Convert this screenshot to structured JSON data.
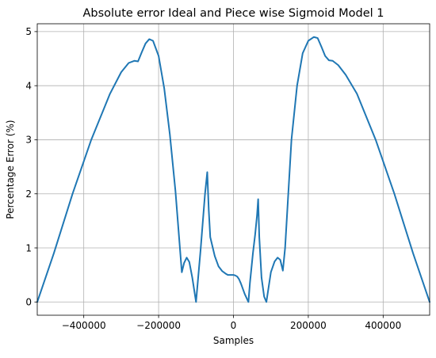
{
  "chart_data": {
    "type": "line",
    "title": "Absolute error Ideal and Piece wise Sigmoid Model 1",
    "xlabel": "Samples",
    "ylabel": "Percentage Error (%)",
    "xlim": [
      -524288,
      524288
    ],
    "ylim": [
      -0.245,
      5.145
    ],
    "x_ticks": [
      -400000,
      -200000,
      0,
      200000,
      400000
    ],
    "x_tick_labels": [
      "−400000",
      "−200000",
      "0",
      "200000",
      "400000"
    ],
    "y_ticks": [
      0,
      1,
      2,
      3,
      4,
      5
    ],
    "y_tick_labels": [
      "0",
      "1",
      "2",
      "3",
      "4",
      "5"
    ],
    "grid": true,
    "colors": {
      "line": "#1f77b4",
      "grid": "#b0b0b0",
      "axes": "#000000"
    },
    "series": [
      {
        "x": [
          -524288,
          -480000,
          -430000,
          -380000,
          -330000,
          -300000,
          -280000,
          -265000,
          -255000,
          -245000,
          -235000,
          -225000,
          -215000,
          -200000,
          -185000,
          -170000,
          -155000,
          -138000,
          -132000,
          -125000,
          -118000,
          -110000,
          -100000,
          -88000,
          -76000,
          -70000,
          -66000,
          -62000,
          -50000,
          -40000,
          -30000,
          -20000,
          -15000,
          -10000,
          -5000,
          0,
          5000,
          10000,
          15000,
          20000,
          30000,
          40000,
          44000,
          52000,
          58000,
          63000,
          66000,
          69000,
          75000,
          82000,
          88000,
          100000,
          110000,
          118000,
          125000,
          132000,
          138000,
          155000,
          170000,
          185000,
          200000,
          215000,
          225000,
          235000,
          245000,
          255000,
          265000,
          280000,
          300000,
          330000,
          380000,
          430000,
          480000,
          524288
        ],
        "y": [
          0.0,
          0.9,
          2.0,
          3.0,
          3.85,
          4.25,
          4.42,
          4.46,
          4.45,
          4.62,
          4.78,
          4.86,
          4.83,
          4.55,
          3.95,
          3.1,
          2.05,
          0.55,
          0.72,
          0.82,
          0.74,
          0.45,
          0.0,
          0.95,
          2.0,
          2.4,
          1.7,
          1.2,
          0.85,
          0.66,
          0.57,
          0.52,
          0.5,
          0.5,
          0.5,
          0.5,
          0.49,
          0.47,
          0.42,
          0.34,
          0.15,
          0.0,
          0.35,
          0.9,
          1.25,
          1.6,
          1.9,
          1.2,
          0.45,
          0.1,
          0.0,
          0.55,
          0.75,
          0.82,
          0.78,
          0.58,
          1.0,
          3.0,
          4.0,
          4.6,
          4.83,
          4.9,
          4.88,
          4.72,
          4.55,
          4.47,
          4.46,
          4.38,
          4.2,
          3.85,
          3.0,
          2.0,
          0.9,
          0.0
        ]
      }
    ]
  }
}
